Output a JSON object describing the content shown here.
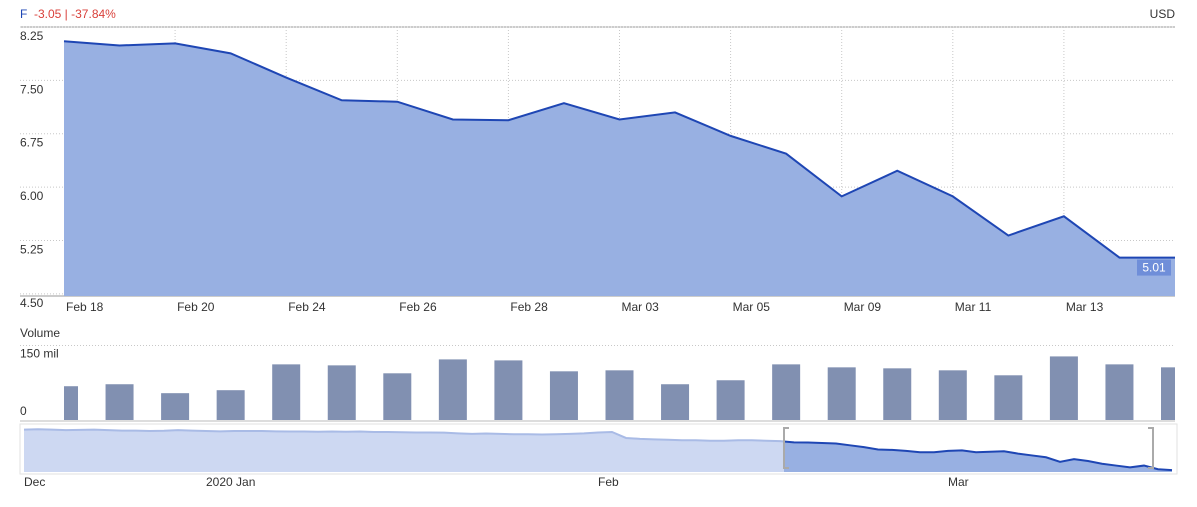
{
  "chart_data": [
    {
      "type": "area",
      "title": "F",
      "subtitle": "-3.05 | -37.84%",
      "unit": "USD",
      "categories": [
        "Feb 18",
        null,
        "Feb 20",
        null,
        "Feb 24",
        null,
        "Feb 26",
        null,
        "Feb 28",
        null,
        "Mar 03",
        null,
        "Mar 05",
        null,
        "Mar 09",
        null,
        "Mar 11",
        null,
        "Mar 13",
        null,
        null
      ],
      "values": [
        8.05,
        7.99,
        8.02,
        7.88,
        7.54,
        7.22,
        7.2,
        6.95,
        6.94,
        7.18,
        6.95,
        7.05,
        6.72,
        6.47,
        5.87,
        6.23,
        5.87,
        5.32,
        5.59,
        5.01,
        5.01
      ],
      "color": "#98b0e2",
      "line_color": "#1e46b4",
      "ylim": [
        4.47,
        8.25
      ],
      "yticks": [
        8.25,
        {
          "value": 7.5,
          "label": "7.50"
        },
        6.75,
        {
          "value": 6.0,
          "label": "6.00"
        },
        5.25,
        {
          "value": 4.5,
          "label": "4.50"
        }
      ],
      "grid": true
    },
    {
      "type": "bar",
      "title": "Volume",
      "values": [
        68,
        72,
        54,
        60,
        112,
        110,
        94,
        122,
        120,
        98,
        100,
        72,
        80,
        112,
        106,
        104,
        100,
        90,
        128,
        112,
        106
      ],
      "color": "#8190b1",
      "ylim": [
        0,
        155
      ],
      "yticks": [
        {
          "value": 150,
          "label": "150 mil"
        },
        0
      ]
    },
    {
      "type": "area",
      "categories": [
        "Dec",
        null,
        null,
        null,
        null,
        null,
        null,
        null,
        null,
        null,
        null,
        null,
        null,
        "2020 Jan",
        null,
        null,
        null,
        null,
        null,
        null,
        null,
        null,
        null,
        null,
        null,
        null,
        null,
        null,
        null,
        null,
        null,
        null,
        null,
        null,
        null,
        null,
        null,
        null,
        null,
        null,
        null,
        "Feb",
        null,
        null,
        null,
        null,
        null,
        null,
        null,
        null,
        null,
        null,
        null,
        null,
        null,
        null,
        null,
        null,
        null,
        null,
        null,
        null,
        null,
        null,
        null,
        null,
        "Mar",
        null,
        null,
        null,
        null,
        null,
        null,
        null,
        null,
        null,
        null,
        null,
        null,
        null,
        null,
        null,
        null
      ],
      "values": [
        9.4,
        9.45,
        9.4,
        9.35,
        9.38,
        9.4,
        9.35,
        9.3,
        9.3,
        9.25,
        9.28,
        9.35,
        9.3,
        9.25,
        9.22,
        9.25,
        9.25,
        9.25,
        9.22,
        9.2,
        9.2,
        9.18,
        9.2,
        9.18,
        9.2,
        9.15,
        9.15,
        9.12,
        9.1,
        9.1,
        9.08,
        9.0,
        8.95,
        8.98,
        8.95,
        8.9,
        8.9,
        8.88,
        8.9,
        8.95,
        9.0,
        9.1,
        9.15,
        8.5,
        8.4,
        8.35,
        8.3,
        8.25,
        8.25,
        8.2,
        8.2,
        8.25,
        8.25,
        8.2,
        8.15,
        8.02,
        8.0,
        7.95,
        7.9,
        7.7,
        7.5,
        7.25,
        7.2,
        7.1,
        6.95,
        6.95,
        7.1,
        7.15,
        6.95,
        7.0,
        7.05,
        6.8,
        6.6,
        6.4,
        5.9,
        6.2,
        6.0,
        5.7,
        5.5,
        5.3,
        5.5,
        5.1,
        5.01
      ],
      "color": "#cdd8f2",
      "line_color": "#a9bbe6",
      "highlight_color": "#98b0e2",
      "highlight_line_color": "#1e46b4",
      "ylim": [
        4.8,
        9.8
      ]
    }
  ]
}
